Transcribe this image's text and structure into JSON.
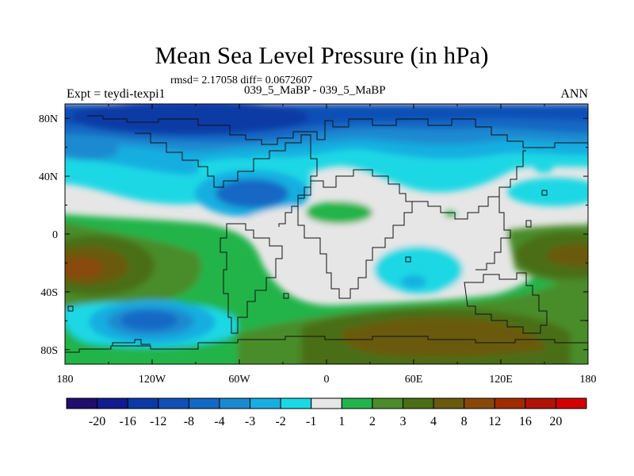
{
  "chart_data": {
    "type": "heatmap",
    "title": "Mean Sea Level Pressure (in hPa)",
    "stats_text": "rmsd= 2.17058 diff= 0.0672607",
    "left_label": "Expt = teydi-texpi1",
    "center_label": "039_5_MaBP - 039_5_MaBP",
    "right_label": "ANN",
    "x_range": [
      -180,
      180
    ],
    "y_range": [
      -90,
      90
    ],
    "x_ticks": [
      {
        "value": -180,
        "label": "180"
      },
      {
        "value": -120,
        "label": "120W"
      },
      {
        "value": -60,
        "label": "60W"
      },
      {
        "value": 0,
        "label": "0"
      },
      {
        "value": 60,
        "label": "60E"
      },
      {
        "value": 120,
        "label": "120E"
      },
      {
        "value": 180,
        "label": "180"
      }
    ],
    "y_ticks": [
      {
        "value": 80,
        "label": "80N"
      },
      {
        "value": 40,
        "label": "40N"
      },
      {
        "value": 0,
        "label": "0"
      },
      {
        "value": -40,
        "label": "40S"
      },
      {
        "value": -80,
        "label": "80S"
      }
    ],
    "colorbar": {
      "boundaries": [
        "-20",
        "-16",
        "-12",
        "-8",
        "-4",
        "-3",
        "-2",
        "-1",
        "1",
        "2",
        "3",
        "4",
        "8",
        "12",
        "16",
        "20"
      ],
      "colors": [
        "#1f0d6e",
        "#101c8f",
        "#0a3aa6",
        "#1050b6",
        "#1268c4",
        "#1a8ad0",
        "#18aee0",
        "#1ad8e4",
        "#e6e6e6",
        "#22b44a",
        "#4a8c2a",
        "#4a6e14",
        "#6a5a10",
        "#8a4808",
        "#a02a04",
        "#b01404",
        "#d40000"
      ]
    },
    "regions": [
      {
        "name": "arctic-low",
        "value": -8,
        "color": "#1050b6",
        "lon": [
          -180,
          180
        ],
        "lat": [
          62,
          90
        ]
      },
      {
        "name": "arctic-core",
        "value": -12,
        "color": "#0a3aa6",
        "lon": [
          -160,
          -20
        ],
        "lat": [
          70,
          90
        ]
      },
      {
        "name": "north-pacific-low",
        "value": -4,
        "color": "#1268c4",
        "lon": [
          -95,
          -25
        ],
        "lat": [
          25,
          50
        ]
      },
      {
        "name": "southern-ocean-low",
        "value": -4,
        "color": "#1268c4",
        "lon": [
          -170,
          -105
        ],
        "lat": [
          -80,
          -50
        ]
      },
      {
        "name": "indian-ocean-low",
        "value": -2,
        "color": "#18aee0",
        "lon": [
          35,
          95
        ],
        "lat": [
          -45,
          -15
        ]
      },
      {
        "name": "tropical-pacific-high",
        "value": 3,
        "color": "#4a8c2a",
        "lon": [
          -180,
          -100
        ],
        "lat": [
          -50,
          10
        ]
      },
      {
        "name": "southern-high-belt",
        "value": 4,
        "color": "#4a6e14",
        "lon": [
          -20,
          180
        ],
        "lat": [
          -88,
          -55
        ]
      },
      {
        "name": "south-pacific-high",
        "value": 8,
        "color": "#6a5a10",
        "lon": [
          -180,
          -140
        ],
        "lat": [
          -35,
          -15
        ]
      }
    ]
  }
}
